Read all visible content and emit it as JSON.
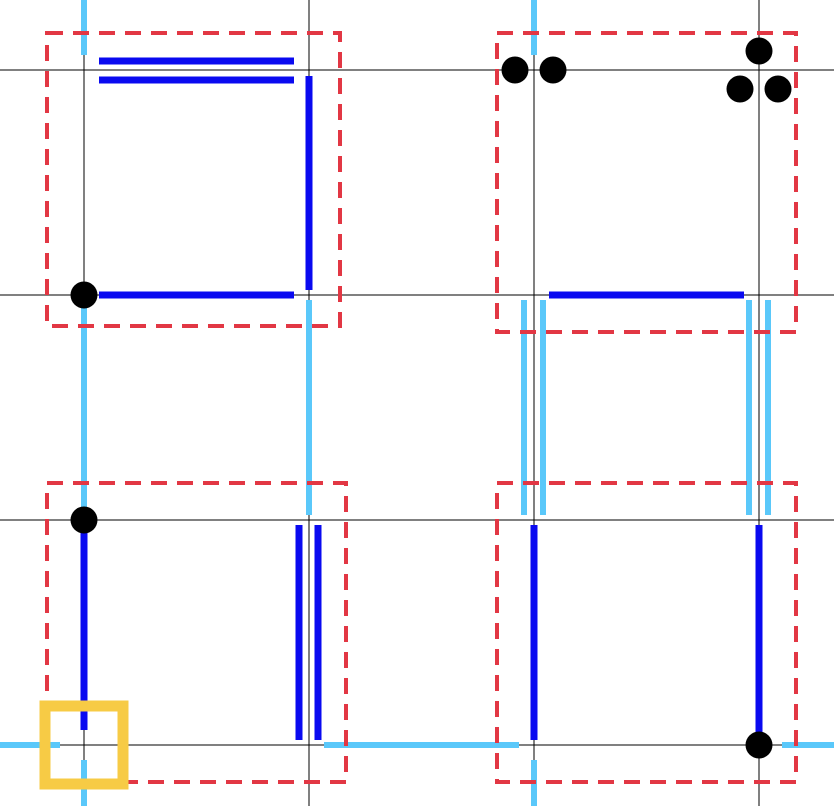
{
  "colors": {
    "background": "#ffffff",
    "grid": "#000000",
    "region_border": "#e23744",
    "edge_inner": "#0a0af0",
    "edge_outer": "#5ac8fa",
    "dot": "#000000",
    "cursor": "#f7cb45"
  },
  "board": {
    "grid_lines": {
      "columns": 4,
      "rows": 4
    },
    "regions": [
      {
        "name": "region-top-left"
      },
      {
        "name": "region-top-right"
      },
      {
        "name": "region-bottom-left"
      },
      {
        "name": "region-bottom-right"
      }
    ],
    "cursor": {
      "name": "selection-cursor",
      "col": 0,
      "row": 3
    },
    "dots": [
      {
        "name": "dot",
        "count": 1,
        "node": [
          0,
          1
        ]
      },
      {
        "name": "dot",
        "count": 1,
        "node": [
          0,
          2
        ]
      },
      {
        "name": "dot",
        "count": 2,
        "node": [
          2,
          0
        ]
      },
      {
        "name": "dot",
        "count": 3,
        "node": [
          3,
          0
        ]
      },
      {
        "name": "dot",
        "count": 1,
        "node": [
          3,
          3
        ]
      }
    ]
  }
}
